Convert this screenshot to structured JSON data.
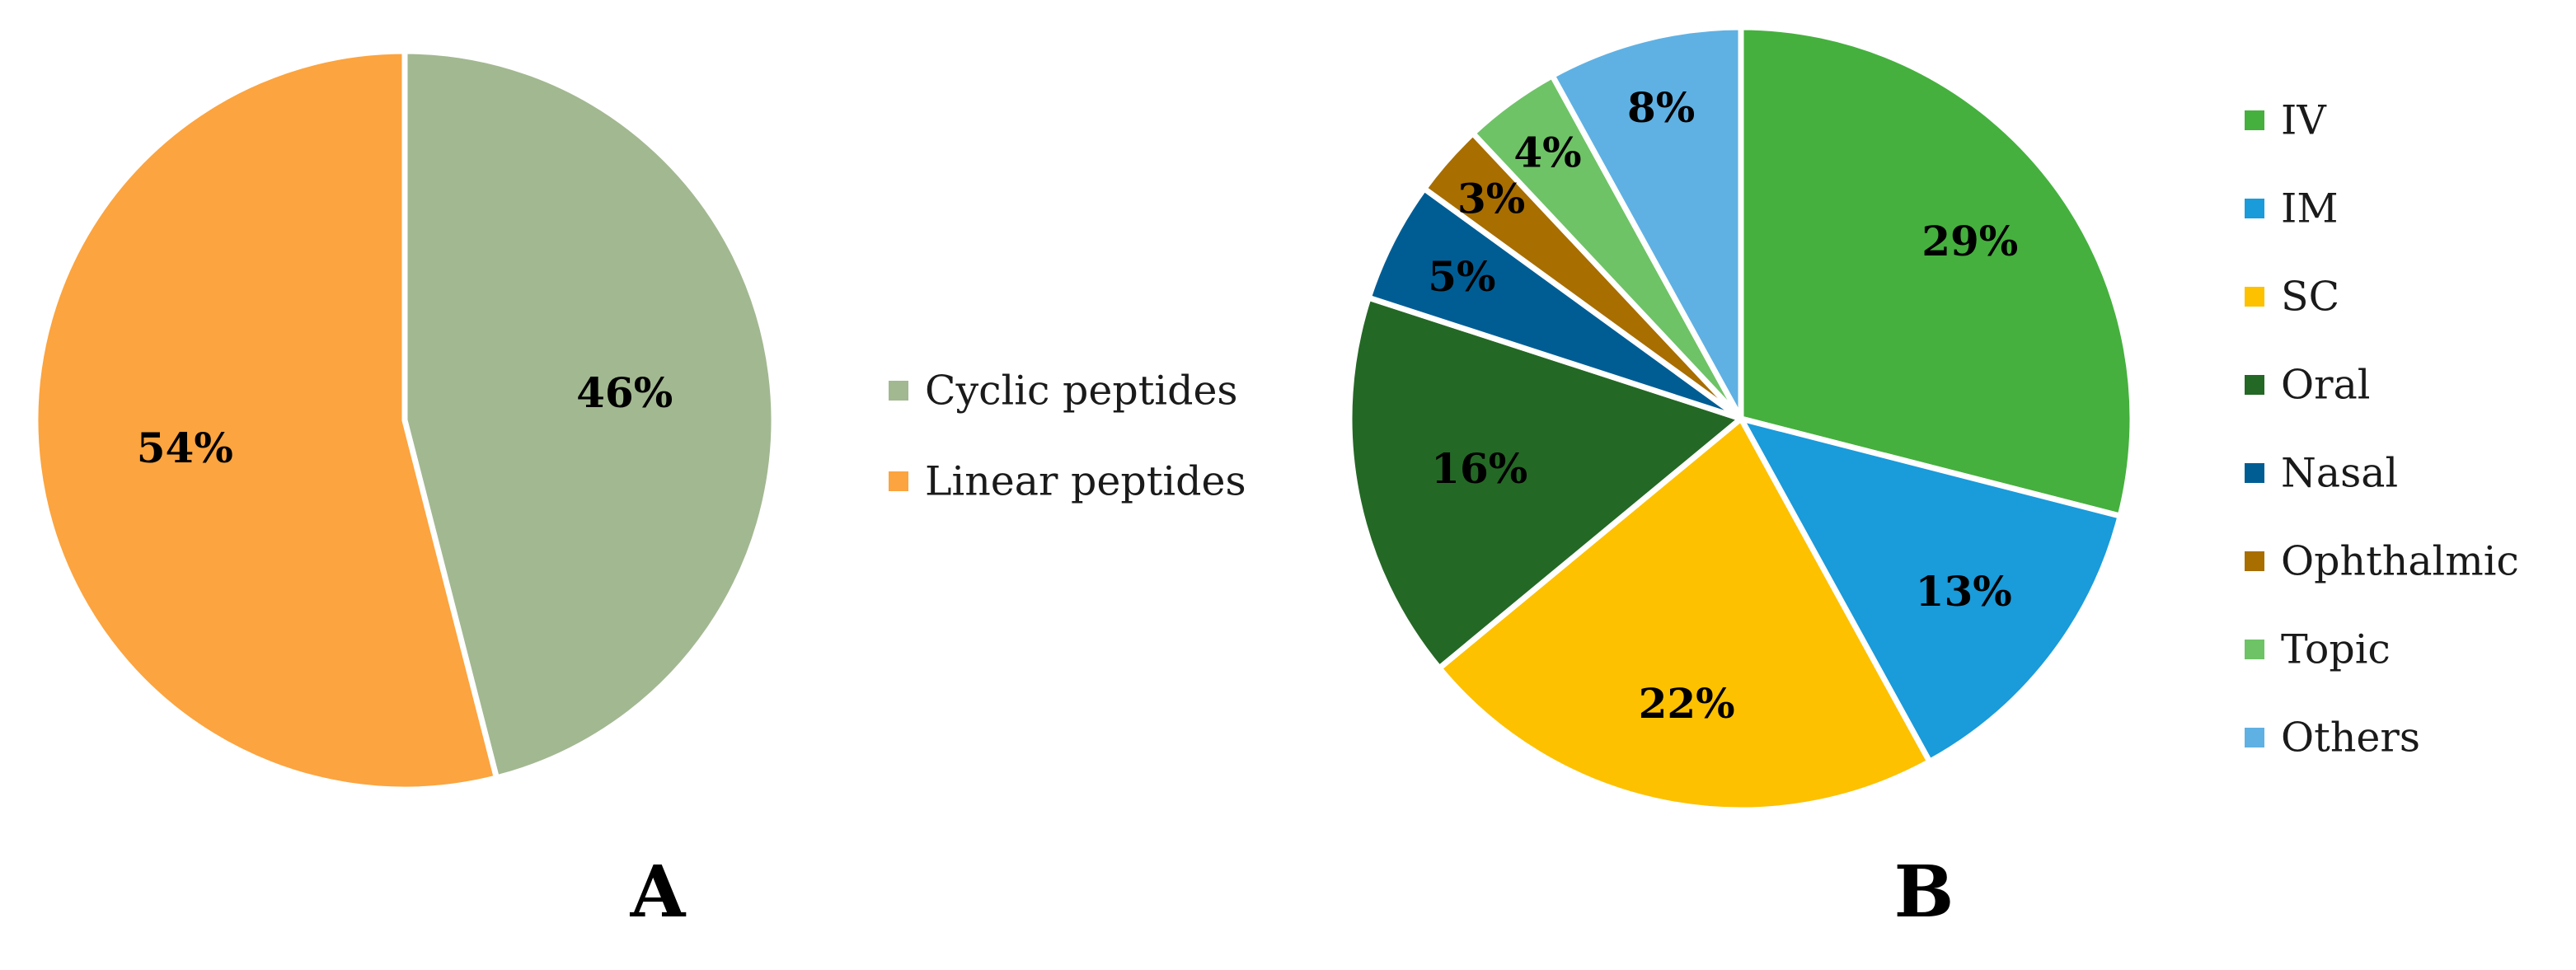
{
  "chart_data": [
    {
      "type": "pie",
      "panel_label": "A",
      "title": "",
      "legend_placement": "right",
      "slices": [
        {
          "name": "Cyclic peptides",
          "value": 46,
          "label": "46%",
          "color": "#A2B891"
        },
        {
          "name": "Linear peptides",
          "value": 54,
          "label": "54%",
          "color": "#FCA43F"
        }
      ]
    },
    {
      "type": "pie",
      "panel_label": "B",
      "title": "",
      "legend_placement": "right",
      "slices": [
        {
          "name": "IV",
          "value": 29,
          "label": "29%",
          "color": "#45B03E"
        },
        {
          "name": "IM",
          "value": 13,
          "label": "13%",
          "color": "#1A9BDA"
        },
        {
          "name": "SC",
          "value": 22,
          "label": "22%",
          "color": "#FDC100"
        },
        {
          "name": "Oral",
          "value": 16,
          "label": "16%",
          "color": "#246825"
        },
        {
          "name": "Nasal",
          "value": 5,
          "label": "5%",
          "color": "#005D94"
        },
        {
          "name": "Ophthalmic",
          "value": 3,
          "label": "3%",
          "color": "#A86E00"
        },
        {
          "name": "Topic",
          "value": 4,
          "label": "4%",
          "color": "#6EC366"
        },
        {
          "name": "Others",
          "value": 8,
          "label": "8%",
          "color": "#5FB1E3"
        }
      ]
    }
  ]
}
